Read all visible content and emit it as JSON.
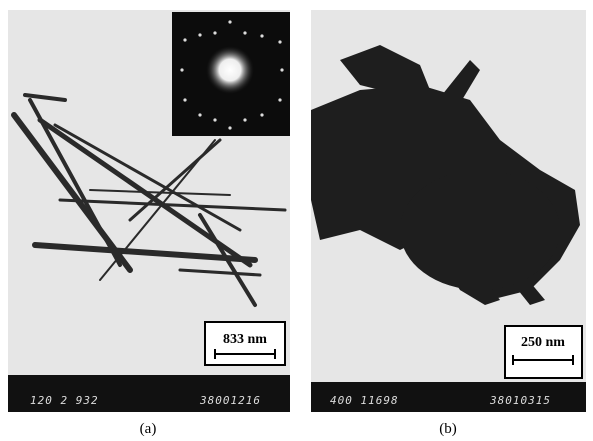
{
  "panels": [
    {
      "label": "(a)",
      "scale_bar": "833 nm",
      "footer": [
        "120 2 932",
        "38001216"
      ]
    },
    {
      "label": "(b)",
      "scale_bar": "250 nm",
      "footer": [
        "400 11698",
        "38010315"
      ]
    }
  ]
}
